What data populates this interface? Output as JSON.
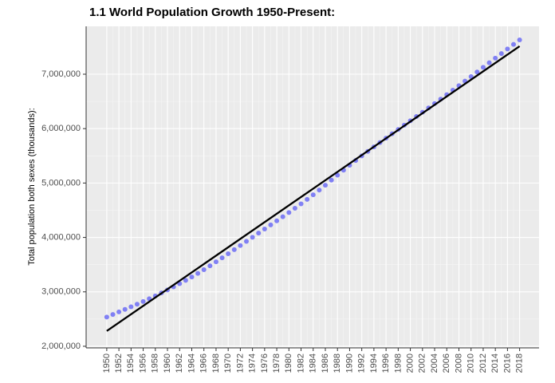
{
  "chart_data": {
    "type": "scatter",
    "title": "1.1 World Population Growth 1950-Present:",
    "y_label": "Total population both sexes (thousands):",
    "x": [
      1950,
      1951,
      1952,
      1953,
      1954,
      1955,
      1956,
      1957,
      1958,
      1959,
      1960,
      1961,
      1962,
      1963,
      1964,
      1965,
      1966,
      1967,
      1968,
      1969,
      1970,
      1971,
      1972,
      1973,
      1974,
      1975,
      1976,
      1977,
      1978,
      1979,
      1980,
      1981,
      1982,
      1983,
      1984,
      1985,
      1986,
      1987,
      1988,
      1989,
      1990,
      1991,
      1992,
      1993,
      1994,
      1995,
      1996,
      1997,
      1998,
      1999,
      2000,
      2001,
      2002,
      2003,
      2004,
      2005,
      2006,
      2007,
      2008,
      2009,
      2010,
      2011,
      2012,
      2013,
      2014,
      2015,
      2016,
      2017,
      2018
    ],
    "values": [
      2536431,
      2584034,
      2630862,
      2677609,
      2724847,
      2773020,
      2822443,
      2873306,
      2925687,
      2979576,
      3034950,
      3091844,
      3150421,
      3211001,
      3273978,
      3339584,
      3407923,
      3478770,
      3551599,
      3625681,
      3700437,
      3775760,
      3851651,
      3927781,
      4003794,
      4079480,
      4154667,
      4229506,
      4304534,
      4380506,
      4458003,
      4536997,
      4617387,
      4699569,
      4784012,
      4870922,
      4960568,
      5052522,
      5145426,
      5237441,
      5327231,
      5414289,
      5498920,
      5581598,
      5663150,
      5744213,
      5824892,
      5905046,
      5984794,
      6064239,
      6143494,
      6222627,
      6301773,
      6381185,
      6461159,
      6541907,
      6623518,
      6705947,
      6789089,
      6872767,
      6956824,
      7041194,
      7125828,
      7210582,
      7295291,
      7379797,
      7464022,
      7547859,
      7631091
    ],
    "color": "#5b5bf5",
    "trend": {
      "x": [
        1950,
        2018
      ],
      "values": [
        2280000,
        7515000
      ],
      "color": "#000000"
    },
    "xlim": [
      1946.6,
      2021.2
    ],
    "xticks": [
      1950,
      1952,
      1954,
      1956,
      1958,
      1960,
      1962,
      1964,
      1966,
      1968,
      1970,
      1972,
      1974,
      1976,
      1978,
      1980,
      1982,
      1984,
      1986,
      1988,
      1990,
      1992,
      1994,
      1996,
      1998,
      2000,
      2002,
      2004,
      2006,
      2008,
      2010,
      2012,
      2014,
      2016,
      2018
    ],
    "ylim": [
      1970000,
      7880000
    ],
    "yticks": [
      {
        "value": 2000000,
        "label": "2,000,000"
      },
      {
        "value": 3000000,
        "label": "3,000,000"
      },
      {
        "value": 4000000,
        "label": "4,000,000"
      },
      {
        "value": 5000000,
        "label": "5,000,000"
      },
      {
        "value": 6000000,
        "label": "6,000,000"
      },
      {
        "value": 7000000,
        "label": "7,000,000"
      }
    ],
    "grid": true,
    "minor_grid": true
  }
}
